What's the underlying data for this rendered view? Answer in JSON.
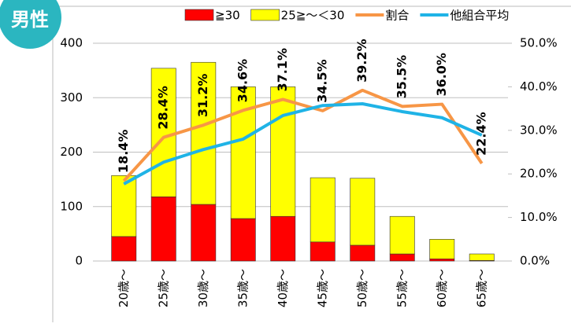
{
  "badge": "男性",
  "chart_data": {
    "type": "bar",
    "stacked": true,
    "categories": [
      "20歳～",
      "25歳～",
      "30歳～",
      "35歳～",
      "40歳～",
      "45歳～",
      "50歳～",
      "55歳～",
      "60歳～",
      "65歳～"
    ],
    "series": [
      {
        "name": "≧30",
        "type": "bar",
        "color": "#ff0000",
        "values": [
          45,
          118,
          104,
          78,
          82,
          35,
          29,
          13,
          4,
          1
        ]
      },
      {
        "name": "25≧～＜30",
        "type": "bar",
        "color": "#ffff00",
        "values": [
          112,
          236,
          261,
          242,
          238,
          118,
          123,
          69,
          36,
          12
        ]
      },
      {
        "name": "割合",
        "type": "line",
        "axis": "y2",
        "color": "#f79646",
        "values": [
          18.4,
          28.4,
          31.2,
          34.6,
          37.1,
          34.5,
          39.2,
          35.5,
          36.0,
          22.4
        ],
        "value_labels": [
          "18.4%",
          "28.4%",
          "31.2%",
          "34.6%",
          "37.1%",
          "34.5%",
          "39.2%",
          "35.5%",
          "36.0%",
          "22.4%"
        ]
      },
      {
        "name": "他組合平均",
        "type": "line",
        "axis": "y2",
        "color": "#1fb3e6",
        "values": [
          17.7,
          22.7,
          25.6,
          28.0,
          33.4,
          35.7,
          36.1,
          34.3,
          32.9,
          28.9
        ]
      }
    ],
    "ylim": [
      0,
      400
    ],
    "yticks": [
      0,
      100,
      200,
      300,
      400
    ],
    "y2lim": [
      0,
      50
    ],
    "y2ticks": [
      {
        "value": 0,
        "label": "0.0%"
      },
      {
        "value": 10,
        "label": "10.0%"
      },
      {
        "value": 20,
        "label": "20.0%"
      },
      {
        "value": 30,
        "label": "30.0%"
      },
      {
        "value": 40,
        "label": "40.0%"
      },
      {
        "value": 50,
        "label": "50.0%"
      }
    ],
    "grid": true
  }
}
